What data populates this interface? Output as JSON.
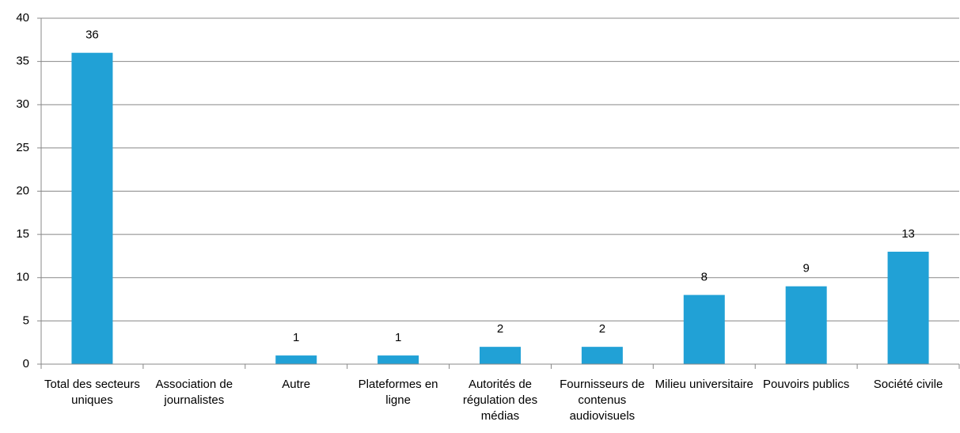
{
  "chart_data": {
    "type": "bar",
    "categories": [
      "Total des secteurs uniques",
      "Association de journalistes",
      "Autre",
      "Plateformes en ligne",
      "Autorités de régulation des médias",
      "Fournisseurs de contenus audiovisuels",
      "Milieu universitaire",
      "Pouvoirs publics",
      "Société civile"
    ],
    "values": [
      36,
      0,
      1,
      1,
      2,
      2,
      8,
      9,
      13
    ],
    "value_labels": [
      "36",
      null,
      "1",
      "1",
      "2",
      "2",
      "8",
      "9",
      "13"
    ],
    "color": "#21a1d6",
    "ylim": [
      0,
      40
    ],
    "yticks": [
      0,
      5,
      10,
      15,
      20,
      25,
      30,
      35,
      40
    ],
    "grid": true
  }
}
